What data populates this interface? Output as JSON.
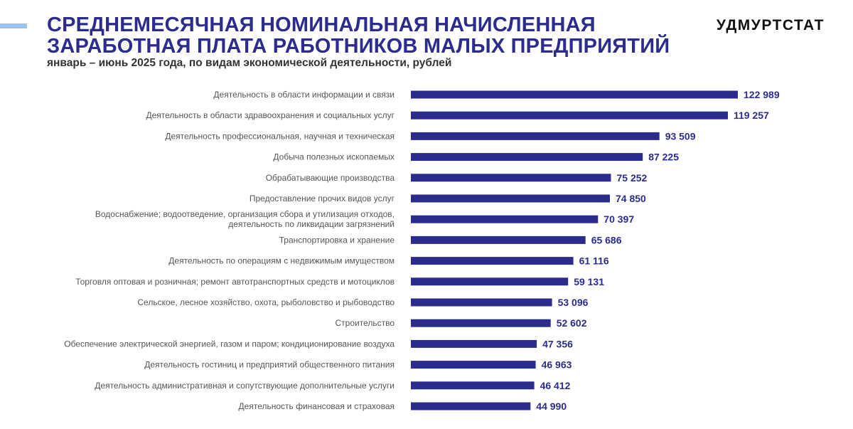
{
  "header": {
    "title_line1": "СРЕДНЕМЕСЯЧНАЯ НОМИНАЛЬНАЯ НАЧИСЛЕННАЯ",
    "title_line2": "ЗАРАБОТНАЯ ПЛАТА РАБОТНИКОВ МАЛЫХ ПРЕДПРИЯТИЙ",
    "subtitle": "январь – июнь 2025 года, по видам экономической деятельности, рублей",
    "brand": "УДМУРТСТАТ"
  },
  "colors": {
    "accent": "#9cc3f0",
    "bar": "#2b2c8c",
    "title": "#2b2c8c"
  },
  "chart_data": {
    "type": "bar",
    "orientation": "horizontal",
    "categories": [
      [
        "Деятельность в области информации и связи"
      ],
      [
        "Деятельность в области здравоохранения и социальных услуг"
      ],
      [
        "Деятельность профессиональная, научная и техническая"
      ],
      [
        "Добыча полезных ископаемых"
      ],
      [
        "Обрабатывающие производства"
      ],
      [
        "Предоставление прочих видов услуг"
      ],
      [
        "Водоснабжение; водоотведение, организация сбора и утилизация отходов,",
        "деятельность по ликвидации загрязнений"
      ],
      [
        "Транспортировка и хранение"
      ],
      [
        "Деятельность по операциям с недвижимым имуществом"
      ],
      [
        "Торговля оптовая и розничная; ремонт автотранспортных средств и мотоциклов"
      ],
      [
        "Сельское, лесное хозяйство, охота, рыболовство и рыбоводство"
      ],
      [
        "Строительство"
      ],
      [
        "Обеспечение электрической энергией, газом и паром; кондиционирование воздуха"
      ],
      [
        "Деятельность гостиниц и предприятий общественного питания"
      ],
      [
        "Деятельность административная и сопутствующие дополнительные услуги"
      ],
      [
        "Деятельность финансовая и страховая"
      ]
    ],
    "values": [
      122989,
      119257,
      93509,
      87225,
      75252,
      74850,
      70397,
      65686,
      61116,
      59131,
      53096,
      52602,
      47356,
      46963,
      46412,
      44990
    ],
    "value_labels": [
      "122 989",
      "119 257",
      "93 509",
      "87 225",
      "75 252",
      "74 850",
      "70 397",
      "65 686",
      "61 116",
      "59 131",
      "53 096",
      "52 602",
      "47 356",
      "46 963",
      "46 412",
      "44 990"
    ],
    "title": "",
    "xlabel": "",
    "ylabel": "",
    "grid": false,
    "legend": "none"
  }
}
